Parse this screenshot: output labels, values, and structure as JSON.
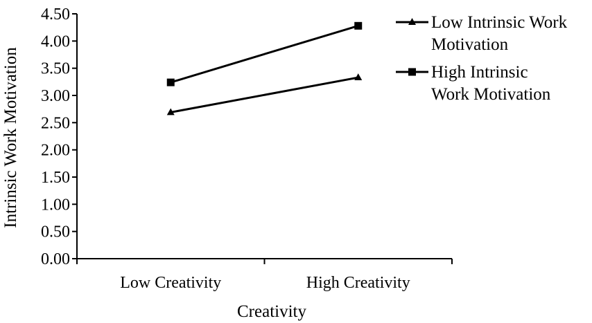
{
  "chart_data": {
    "type": "line",
    "categories": [
      "Low Creativity",
      "High Creativity"
    ],
    "series": [
      {
        "name": "Low Intrinsic Work Motivation",
        "legend_lines": [
          "Low Intrinsic Work",
          "Motivation"
        ],
        "marker": "triangle",
        "color": "#000000",
        "values": [
          2.69,
          3.33
        ]
      },
      {
        "name": "High Intrinsic Work Motivation",
        "legend_lines": [
          "High Intrinsic",
          "Work Motivation"
        ],
        "marker": "square",
        "color": "#000000",
        "values": [
          3.24,
          4.28
        ]
      }
    ],
    "ylabel": "Intrinsic Work Motivation",
    "xlabel": "Creativity",
    "ylim": [
      0,
      4.5
    ],
    "yticks": [
      0,
      0.5,
      1.0,
      1.5,
      2.0,
      2.5,
      3.0,
      3.5,
      4.0,
      4.5
    ],
    "ytick_labels": [
      "0.00",
      "0.50",
      "1.00",
      "1.50",
      "2.00",
      "2.50",
      "3.00",
      "3.50",
      "4.00",
      "4.50"
    ],
    "grid": false,
    "legend_position": "right"
  }
}
